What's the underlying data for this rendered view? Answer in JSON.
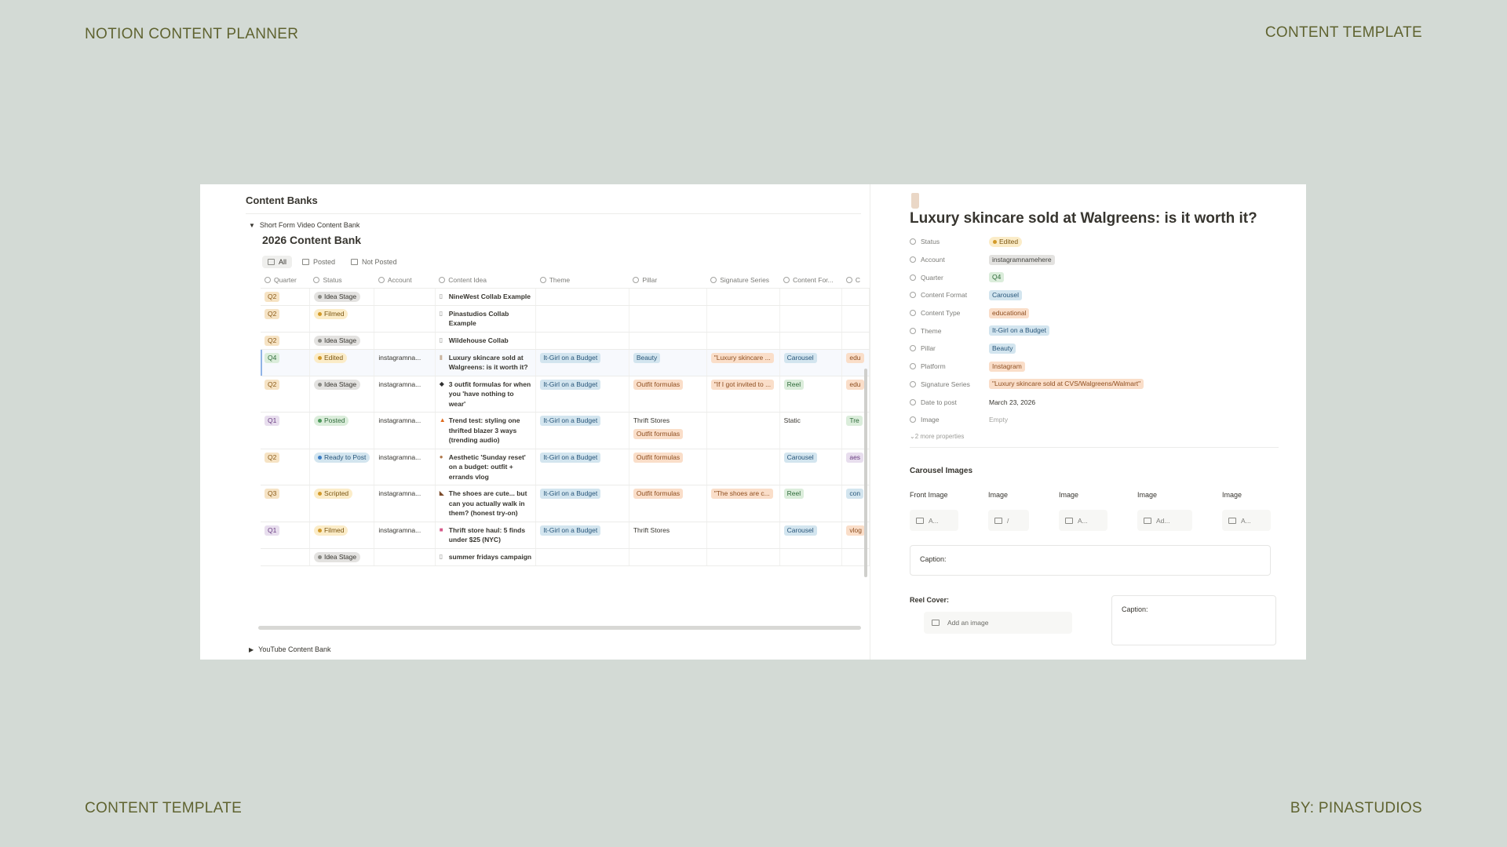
{
  "corners": {
    "top_left": "NOTION CONTENT PLANNER",
    "top_right": "CONTENT TEMPLATE",
    "bottom_left": "CONTENT TEMPLATE",
    "bottom_right": "BY: PINASTUDIOS"
  },
  "left": {
    "section_title": "Content Banks",
    "toggle_label": "Short Form Video Content Bank",
    "db_title": "2026 Content Bank",
    "views": [
      {
        "label": "All",
        "active": true
      },
      {
        "label": "Posted",
        "active": false
      },
      {
        "label": "Not Posted",
        "active": false
      }
    ],
    "columns": [
      "Quarter",
      "Status",
      "Account",
      "Content Idea",
      "Theme",
      "Pillar",
      "Signature Series",
      "Content For...",
      "C"
    ],
    "rows": [
      {
        "quarter": "Q2",
        "qcolor": "orange",
        "status": "Idea Stage",
        "scolor": "gray",
        "account": "",
        "icon": "doc",
        "idea": "NineWest Collab Example",
        "theme": "",
        "pillar": [],
        "sig": "",
        "format": "",
        "extra": "",
        "selected": false
      },
      {
        "quarter": "Q2",
        "qcolor": "orange",
        "status": "Filmed",
        "scolor": "yellow",
        "account": "",
        "icon": "doc",
        "idea": "Pinastudios Collab Example",
        "theme": "",
        "pillar": [],
        "sig": "",
        "format": "",
        "extra": "",
        "selected": false
      },
      {
        "quarter": "Q2",
        "qcolor": "orange",
        "status": "Idea Stage",
        "scolor": "gray",
        "account": "",
        "icon": "doc",
        "idea": "Wildehouse Collab",
        "theme": "",
        "pillar": [],
        "sig": "",
        "format": "",
        "extra": "",
        "selected": false
      },
      {
        "quarter": "Q4",
        "qcolor": "green",
        "status": "Edited",
        "scolor": "yellow",
        "account": "instagramna...",
        "icon": "bottle",
        "idea": "Luxury skincare sold at Walgreens: is it worth it?",
        "theme": "It-Girl on a Budget",
        "pillar": [
          {
            "label": "Beauty",
            "color": "blue"
          }
        ],
        "sig": "\"Luxury skincare ...",
        "format": "Carousel",
        "fcolor": "blue",
        "extra": "edu",
        "xcolor": "peach",
        "selected": true
      },
      {
        "quarter": "Q2",
        "qcolor": "orange",
        "status": "Idea Stage",
        "scolor": "gray",
        "account": "instagramna...",
        "icon": "shirt",
        "idea": "3 outfit formulas for when you 'have nothing to wear'",
        "theme": "It-Girl on a Budget",
        "pillar": [
          {
            "label": "Outfit formulas",
            "color": "peach"
          }
        ],
        "sig": "\"If I got invited to ...",
        "format": "Reel",
        "fcolor": "green",
        "extra": "edu",
        "xcolor": "peach",
        "selected": false
      },
      {
        "quarter": "Q1",
        "qcolor": "purple",
        "status": "Posted",
        "scolor": "green",
        "account": "instagramna...",
        "icon": "fire",
        "idea": "Trend test: styling one thrifted blazer 3 ways (trending audio)",
        "theme": "It-Girl on a Budget",
        "pillar": [
          {
            "label": "Thrift Stores",
            "color": "plain"
          },
          {
            "label": "Outfit formulas",
            "color": "peach"
          }
        ],
        "sig": "",
        "format": "Static",
        "fcolor": "plain",
        "extra": "Tre",
        "xcolor": "green",
        "selected": false
      },
      {
        "quarter": "Q2",
        "qcolor": "orange",
        "status": "Ready to Post",
        "scolor": "blue",
        "account": "instagramna...",
        "icon": "bowl",
        "idea": "Aesthetic 'Sunday reset' on a budget: outfit + errands vlog",
        "theme": "It-Girl on a Budget",
        "pillar": [
          {
            "label": "Outfit formulas",
            "color": "peach"
          }
        ],
        "sig": "",
        "format": "Carousel",
        "fcolor": "blue",
        "extra": "aes",
        "xcolor": "purple",
        "selected": false
      },
      {
        "quarter": "Q3",
        "qcolor": "orange",
        "status": "Scripted",
        "scolor": "yellow",
        "account": "instagramna...",
        "icon": "boot",
        "idea": "The shoes are cute... but can you actually walk in them? (honest try-on)",
        "theme": "It-Girl on a Budget",
        "pillar": [
          {
            "label": "Outfit formulas",
            "color": "peach"
          }
        ],
        "sig": "\"The shoes are c...",
        "format": "Reel",
        "fcolor": "green",
        "extra": "con",
        "xcolor": "blue",
        "selected": false
      },
      {
        "quarter": "Q1",
        "qcolor": "purple",
        "status": "Filmed",
        "scolor": "yellow",
        "account": "instagramna...",
        "icon": "bag",
        "idea": "Thrift store haul: 5 finds under $25 (NYC)",
        "theme": "It-Girl on a Budget",
        "pillar": [
          {
            "label": "Thrift Stores",
            "color": "plain"
          }
        ],
        "sig": "",
        "format": "Carousel",
        "fcolor": "blue",
        "extra": "vlog",
        "xcolor": "peach",
        "selected": false
      },
      {
        "quarter": "",
        "qcolor": "orange",
        "status": "Idea Stage",
        "scolor": "gray",
        "account": "",
        "icon": "doc",
        "idea": "summer fridays campaign",
        "theme": "",
        "pillar": [],
        "sig": "",
        "format": "",
        "extra": "",
        "selected": false
      }
    ],
    "youtube_label": "YouTube Content Bank"
  },
  "right": {
    "title": "Luxury skincare sold at Walgreens: is it worth it?",
    "properties": [
      {
        "key": "Status",
        "value": "Edited",
        "style": "status-yellow"
      },
      {
        "key": "Account",
        "value": "instagramnamehere",
        "style": "gray"
      },
      {
        "key": "Quarter",
        "value": "Q4",
        "style": "green"
      },
      {
        "key": "Content Format",
        "value": "Carousel",
        "style": "blue"
      },
      {
        "key": "Content Type",
        "value": "educational",
        "style": "peach"
      },
      {
        "key": "Theme",
        "value": "It-Girl on a Budget",
        "style": "blue"
      },
      {
        "key": "Pillar",
        "value": "Beauty",
        "style": "blue"
      },
      {
        "key": "Platform",
        "value": "Instagram",
        "style": "peach"
      },
      {
        "key": "Signature Series",
        "value": "\"Luxury skincare sold at CVS/Walgreens/Walmart\"",
        "style": "peach"
      },
      {
        "key": "Date to post",
        "value": "March 23, 2026",
        "style": "text"
      },
      {
        "key": "Image",
        "value": "Empty",
        "style": "empty"
      }
    ],
    "more_properties": "2 more properties",
    "carousel_heading": "Carousel Images",
    "image_labels": [
      "Front Image",
      "Image",
      "Image",
      "Image",
      "Image"
    ],
    "image_slots": [
      "A...",
      "/",
      "A...",
      "Ad...",
      "A..."
    ],
    "caption_label": "Caption:",
    "reel_cover_label": "Reel Cover:",
    "add_image_label": "Add an image",
    "reel_caption_label": "Caption:"
  }
}
